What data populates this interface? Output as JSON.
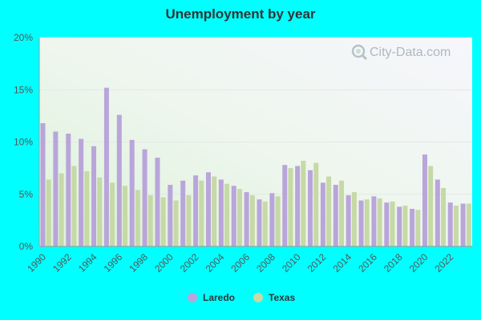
{
  "chart_data": {
    "type": "bar",
    "title": "Unemployment by year",
    "xlabel": "",
    "ylabel": "",
    "ylim": [
      0,
      20
    ],
    "y_ticks": [
      "0%",
      "5%",
      "10%",
      "15%",
      "20%"
    ],
    "grid": true,
    "legend_position": "bottom-center",
    "categories": [
      "1990",
      "1991",
      "1992",
      "1993",
      "1994",
      "1995",
      "1996",
      "1997",
      "1998",
      "1999",
      "2000",
      "2001",
      "2002",
      "2003",
      "2004",
      "2005",
      "2006",
      "2007",
      "2008",
      "2009",
      "2010",
      "2011",
      "2012",
      "2013",
      "2014",
      "2015",
      "2016",
      "2017",
      "2018",
      "2019",
      "2020",
      "2021",
      "2022",
      "2023"
    ],
    "x_tick_labels": [
      "1990",
      "1992",
      "1994",
      "1996",
      "1998",
      "2000",
      "2002",
      "2004",
      "2006",
      "2008",
      "2010",
      "2012",
      "2014",
      "2016",
      "2018",
      "2020",
      "2022"
    ],
    "series": [
      {
        "name": "Laredo",
        "color": "#b9a5da",
        "values": [
          11.8,
          11.0,
          10.8,
          10.3,
          9.6,
          15.2,
          12.6,
          10.2,
          9.3,
          8.5,
          5.9,
          6.3,
          6.8,
          7.1,
          6.4,
          5.8,
          5.2,
          4.5,
          5.1,
          7.8,
          7.7,
          7.3,
          6.1,
          5.9,
          4.9,
          4.4,
          4.8,
          4.2,
          3.8,
          3.6,
          8.8,
          6.4,
          4.2,
          4.1
        ]
      },
      {
        "name": "Texas",
        "color": "#c6d9a6",
        "values": [
          6.4,
          7.0,
          7.7,
          7.2,
          6.6,
          6.1,
          5.8,
          5.4,
          4.9,
          4.7,
          4.4,
          4.9,
          6.3,
          6.7,
          6.0,
          5.5,
          4.9,
          4.3,
          4.8,
          7.5,
          8.2,
          8.0,
          6.7,
          6.3,
          5.2,
          4.5,
          4.6,
          4.3,
          3.9,
          3.5,
          7.7,
          5.6,
          3.9,
          4.1
        ]
      }
    ]
  },
  "watermark": {
    "text": "City-Data.com",
    "icon": "magnifier-icon"
  }
}
